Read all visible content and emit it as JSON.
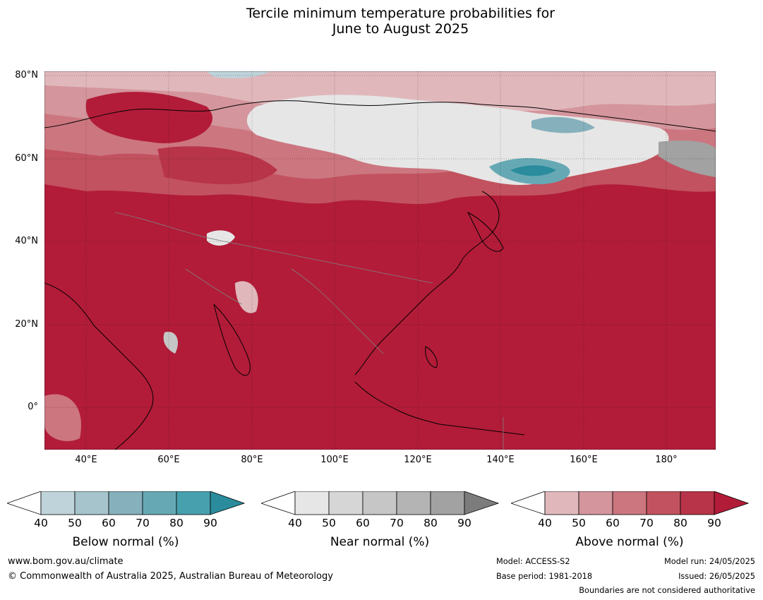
{
  "title": {
    "line1": "Tercile minimum temperature probabilities for",
    "line2": "June to August 2025"
  },
  "map": {
    "lat_labels": [
      "80°N",
      "60°N",
      "40°N",
      "20°N",
      "0°"
    ],
    "lon_labels": [
      "40°E",
      "60°E",
      "80°E",
      "100°E",
      "120°E",
      "140°E",
      "160°E",
      "180°"
    ]
  },
  "colorbars": [
    {
      "label": "Below normal (%)",
      "ticks": [
        "40",
        "50",
        "60",
        "70",
        "80",
        "90"
      ],
      "colors": [
        "#bfd3da",
        "#a5c4cb",
        "#86b0bb",
        "#66a9b5",
        "#46a0ae",
        "#2a8c9c"
      ]
    },
    {
      "label": "Near normal (%)",
      "ticks": [
        "40",
        "50",
        "60",
        "70",
        "80",
        "90"
      ],
      "colors": [
        "#e6e6e6",
        "#d6d6d6",
        "#c6c6c6",
        "#b4b4b4",
        "#a2a2a2",
        "#7c7c7c"
      ]
    },
    {
      "label": "Above normal (%)",
      "ticks": [
        "40",
        "50",
        "60",
        "70",
        "80",
        "90"
      ],
      "colors": [
        "#e0b8bc",
        "#d4959c",
        "#cc7680",
        "#c2525f",
        "#b83448",
        "#b21c38"
      ]
    }
  ],
  "footer": {
    "website": "www.bom.gov.au/climate",
    "copyright": "© Commonwealth of Australia 2025, Australian Bureau of Meteorology",
    "model": "Model: ACCESS-S2",
    "base_period": "Base period: 1981-2018",
    "model_run": "Model run: 24/05/2025",
    "issued": "Issued: 26/05/2025",
    "disclaimer": "Boundaries are not considered authoritative"
  }
}
